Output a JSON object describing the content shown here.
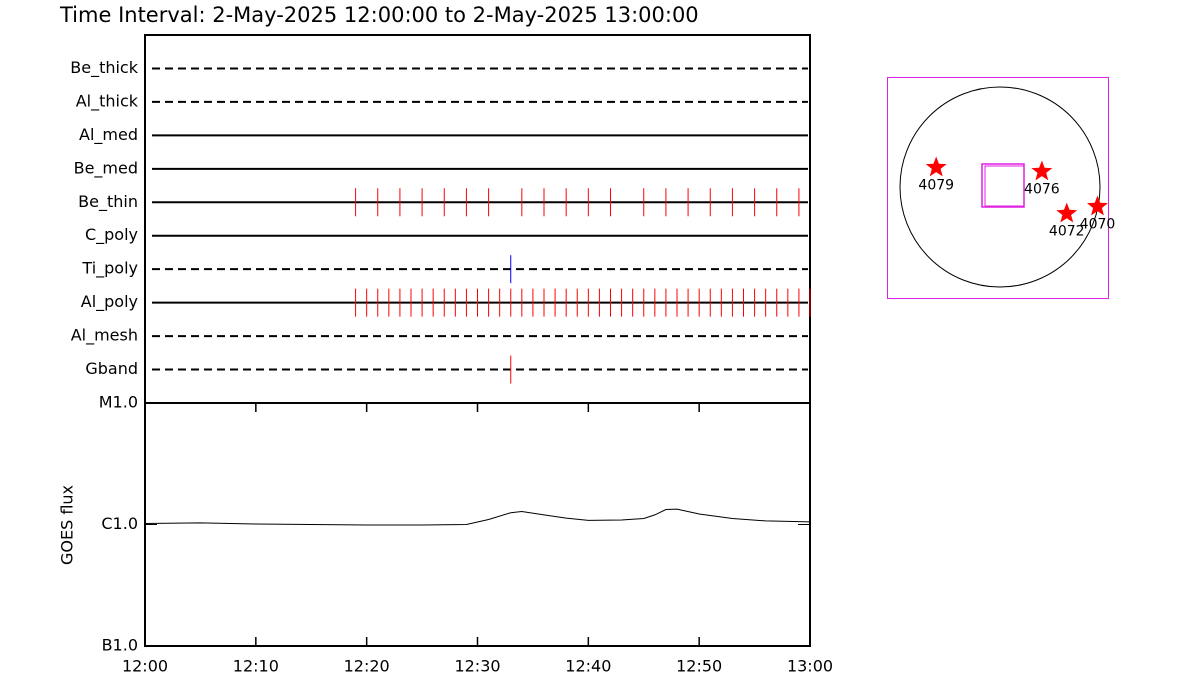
{
  "title": "Time Interval:  2-May-2025 12:00:00 to  2-May-2025 13:00:00",
  "chart_data": [
    {
      "type": "timeline",
      "xlim": [
        "12:00",
        "13:00"
      ],
      "series": [
        {
          "name": "Be_thick",
          "line_style": "dashed",
          "x": []
        },
        {
          "name": "Al_thick",
          "line_style": "dashed",
          "x": []
        },
        {
          "name": "Al_med",
          "line_style": "solid",
          "x": []
        },
        {
          "name": "Be_med",
          "line_style": "solid",
          "x": []
        },
        {
          "name": "Be_thin",
          "line_style": "solid",
          "color": "#ff0000",
          "x": [
            "12:19",
            "12:21",
            "12:23",
            "12:25",
            "12:27",
            "12:29",
            "12:31",
            "12:34",
            "12:36",
            "12:38",
            "12:40",
            "12:42",
            "12:45",
            "12:47",
            "12:49",
            "12:51",
            "12:53",
            "12:55",
            "12:57",
            "12:59"
          ]
        },
        {
          "name": "C_poly",
          "line_style": "solid",
          "x": []
        },
        {
          "name": "Ti_poly",
          "line_style": "dashed",
          "color": "#0000ff",
          "x": [
            "12:33"
          ]
        },
        {
          "name": "Al_poly",
          "line_style": "solid",
          "color": "#ff0000",
          "x": [
            "12:19",
            "12:20",
            "12:21",
            "12:22",
            "12:23",
            "12:24",
            "12:25",
            "12:26",
            "12:27",
            "12:28",
            "12:29",
            "12:30",
            "12:31",
            "12:32",
            "12:33",
            "12:34",
            "12:35",
            "12:36",
            "12:37",
            "12:38",
            "12:39",
            "12:40",
            "12:41",
            "12:42",
            "12:43",
            "12:44",
            "12:45",
            "12:46",
            "12:47",
            "12:48",
            "12:49",
            "12:50",
            "12:51",
            "12:52",
            "12:53",
            "12:54",
            "12:55",
            "12:56",
            "12:57",
            "12:58",
            "12:59",
            "13:00"
          ]
        },
        {
          "name": "Al_mesh",
          "line_style": "dashed",
          "x": []
        },
        {
          "name": "Gband",
          "line_style": "dashed",
          "color": "#ff0000",
          "x": [
            "12:33"
          ]
        }
      ]
    },
    {
      "type": "line",
      "ylabel": "GOES flux",
      "log_scale": true,
      "color": "#000000",
      "x": [
        "12:00",
        "12:05",
        "12:10",
        "12:15",
        "12:20",
        "12:25",
        "12:29",
        "12:31",
        "12:33",
        "12:34",
        "12:36",
        "12:38",
        "12:40",
        "12:43",
        "12:45",
        "12:46",
        "12:47",
        "12:48",
        "12:50",
        "12:53",
        "12:56",
        "13:00"
      ],
      "values": [
        1.02e-06,
        1.03e-06,
        1.01e-06,
        1e-06,
        9.9e-07,
        9.9e-07,
        1e-06,
        1.1e-06,
        1.25e-06,
        1.28e-06,
        1.2e-06,
        1.13e-06,
        1.08e-06,
        1.09e-06,
        1.12e-06,
        1.2e-06,
        1.33e-06,
        1.34e-06,
        1.22e-06,
        1.12e-06,
        1.07e-06,
        1.05e-06
      ],
      "xlim": [
        "12:00",
        "13:00"
      ],
      "xticks": [
        "12:00",
        "12:10",
        "12:20",
        "12:30",
        "12:40",
        "12:50",
        "13:00"
      ],
      "ylim": [
        1e-07,
        1e-05
      ],
      "yticks": [
        {
          "value": 1e-07,
          "label": "B1.0"
        },
        {
          "value": 1e-06,
          "label": "C1.0"
        },
        {
          "value": 1e-05,
          "label": "M1.0"
        }
      ]
    },
    {
      "type": "scatter",
      "color": "#ff0000",
      "xlim": [
        -1056,
        1056
      ],
      "ylim": [
        -1056,
        1056
      ],
      "labels": [
        "4079",
        "4076",
        "4072",
        "4070"
      ],
      "x": [
        -593,
        421,
        660,
        955
      ],
      "y": [
        191,
        153,
        -249,
        -182
      ]
    }
  ]
}
